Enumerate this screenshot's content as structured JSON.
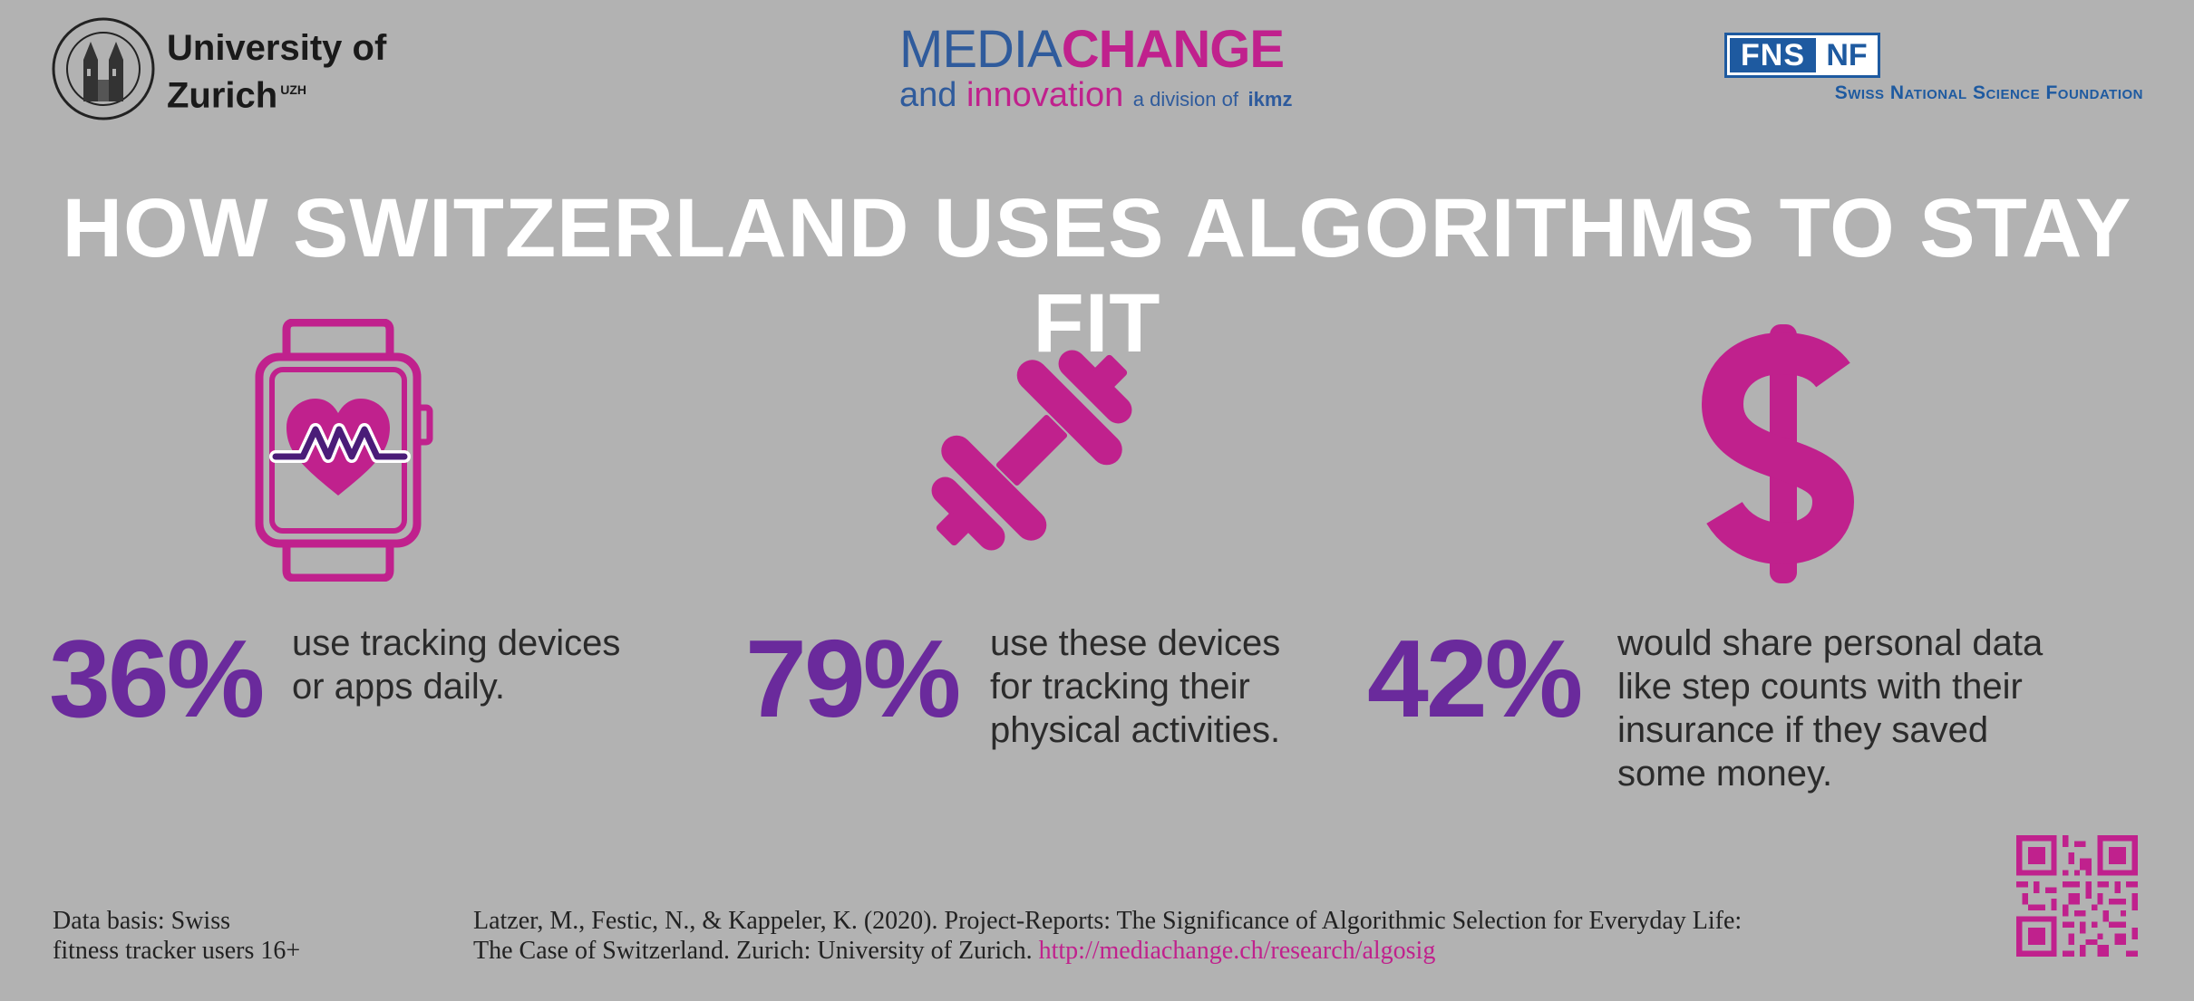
{
  "header": {
    "uzh_name_line1": "University of",
    "uzh_name_line2": "Zurich",
    "uzh_sup": "UZH",
    "mediachange_part1": "MEDIA",
    "mediachange_part2": "CHANGE",
    "tagline_and": "and",
    "tagline_innovation": "innovation",
    "division_text": "a division of",
    "division_org": "ikmz",
    "snf_left": "FNS",
    "snf_right": "NF",
    "snf_name": "Swiss National Science Foundation"
  },
  "title": "HOW SWITZERLAND USES ALGORITHMS TO STAY FIT",
  "stats": [
    {
      "icon": "smartwatch-heart-icon",
      "percent": "36%",
      "line1": "use tracking devices",
      "line2": "or apps daily.",
      "line3": "",
      "line4": ""
    },
    {
      "icon": "dumbbell-icon",
      "percent": "79%",
      "line1": "use these devices",
      "line2": "for tracking their",
      "line3": "physical activities.",
      "line4": ""
    },
    {
      "icon": "dollar-icon",
      "percent": "42%",
      "line1": "would share personal data",
      "line2": "like step counts with their",
      "line3": "insurance if they saved",
      "line4": "some money."
    }
  ],
  "footer": {
    "data_basis_line1": "Data basis: Swiss",
    "data_basis_line2": "fitness tracker users 16+",
    "citation_line1": "Latzer, M., Festic, N., & Kappeler, K. (2020). Project-Reports: The Significance of Algorithmic Selection for Everyday Life:",
    "citation_line2": "The Case of Switzerland. Zurich: University of Zurich.",
    "citation_link": "http://mediachange.ch/research/algosig"
  },
  "colors": {
    "background": "#b2b2b2",
    "accent_magenta": "#c0218d",
    "accent_purple": "#6a2a9c",
    "brand_blue": "#2f5b9c"
  }
}
